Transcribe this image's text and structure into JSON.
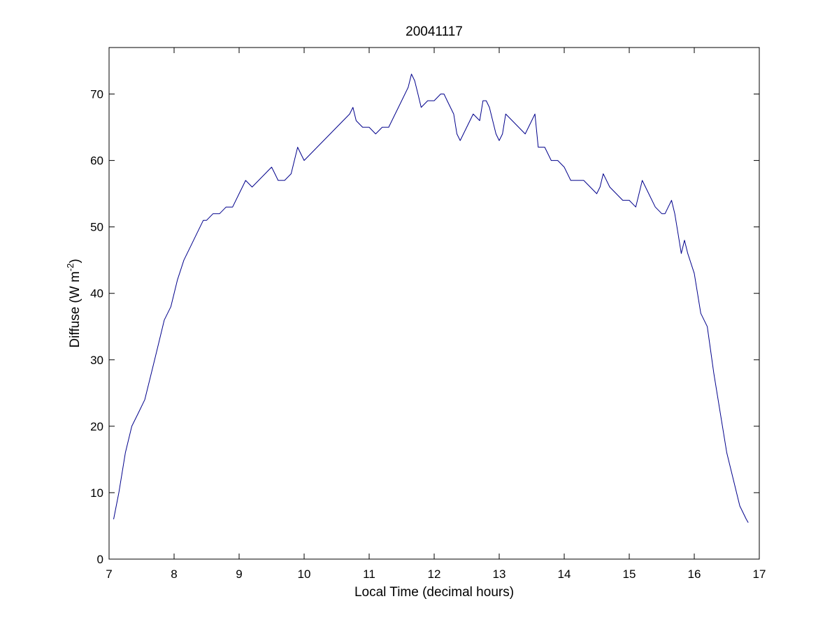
{
  "chart_data": {
    "type": "line",
    "title": "20041117",
    "xlabel": "Local Time (decimal hours)",
    "ylabel": {
      "main": "Diffuse (W m",
      "superscript": "-2",
      "close": ")"
    },
    "xlim": [
      7,
      17
    ],
    "ylim": [
      0,
      77
    ],
    "xticks": [
      7,
      8,
      9,
      10,
      11,
      12,
      13,
      14,
      15,
      16,
      17
    ],
    "yticks": [
      0,
      10,
      20,
      30,
      40,
      50,
      60,
      70
    ],
    "grid": false,
    "legend": "none",
    "line_color": "#00008B",
    "series": [
      {
        "x": [
          7.07,
          7.15,
          7.25,
          7.35,
          7.45,
          7.55,
          7.65,
          7.75,
          7.85,
          7.95,
          8.05,
          8.15,
          8.25,
          8.3,
          8.35,
          8.45,
          8.5,
          8.6,
          8.7,
          8.8,
          8.9,
          9.0,
          9.05,
          9.1,
          9.2,
          9.3,
          9.4,
          9.5,
          9.55,
          9.6,
          9.7,
          9.8,
          9.9,
          9.95,
          10.0,
          10.1,
          10.2,
          10.3,
          10.4,
          10.5,
          10.6,
          10.7,
          10.75,
          10.8,
          10.9,
          11.0,
          11.1,
          11.2,
          11.3,
          11.4,
          11.5,
          11.6,
          11.65,
          11.7,
          11.75,
          11.8,
          11.9,
          12.0,
          12.1,
          12.15,
          12.2,
          12.3,
          12.35,
          12.4,
          12.5,
          12.6,
          12.7,
          12.75,
          12.8,
          12.85,
          12.9,
          12.95,
          13.0,
          13.05,
          13.1,
          13.2,
          13.3,
          13.4,
          13.5,
          13.55,
          13.6,
          13.7,
          13.8,
          13.9,
          14.0,
          14.1,
          14.2,
          14.3,
          14.4,
          14.5,
          14.55,
          14.6,
          14.7,
          14.8,
          14.9,
          15.0,
          15.1,
          15.15,
          15.2,
          15.3,
          15.4,
          15.5,
          15.55,
          15.6,
          15.65,
          15.7,
          15.75,
          15.8,
          15.85,
          15.9,
          16.0,
          16.1,
          16.2,
          16.3,
          16.4,
          16.5,
          16.6,
          16.7,
          16.8,
          16.83
        ],
        "y": [
          6,
          10,
          16,
          20,
          22,
          24,
          28,
          32,
          36,
          38,
          42,
          45,
          47,
          48,
          49,
          51,
          51,
          52,
          52,
          53,
          53,
          55,
          56,
          57,
          56,
          57,
          58,
          59,
          58,
          57,
          57,
          58,
          62,
          61,
          60,
          61,
          62,
          63,
          64,
          65,
          66,
          67,
          68,
          66,
          65,
          65,
          64,
          65,
          65,
          67,
          69,
          71,
          73,
          72,
          70,
          68,
          69,
          69,
          70,
          70,
          69,
          67,
          64,
          63,
          65,
          67,
          66,
          69,
          69,
          68,
          66,
          64,
          63,
          64,
          67,
          66,
          65,
          64,
          66,
          67,
          62,
          62,
          60,
          60,
          59,
          57,
          57,
          57,
          56,
          55,
          56,
          58,
          56,
          55,
          54,
          54,
          53,
          55,
          57,
          55,
          53,
          52,
          52,
          53,
          54,
          52,
          49,
          46,
          48,
          46,
          43,
          37,
          35,
          28,
          22,
          16,
          12,
          8,
          6,
          5.5
        ]
      }
    ]
  }
}
